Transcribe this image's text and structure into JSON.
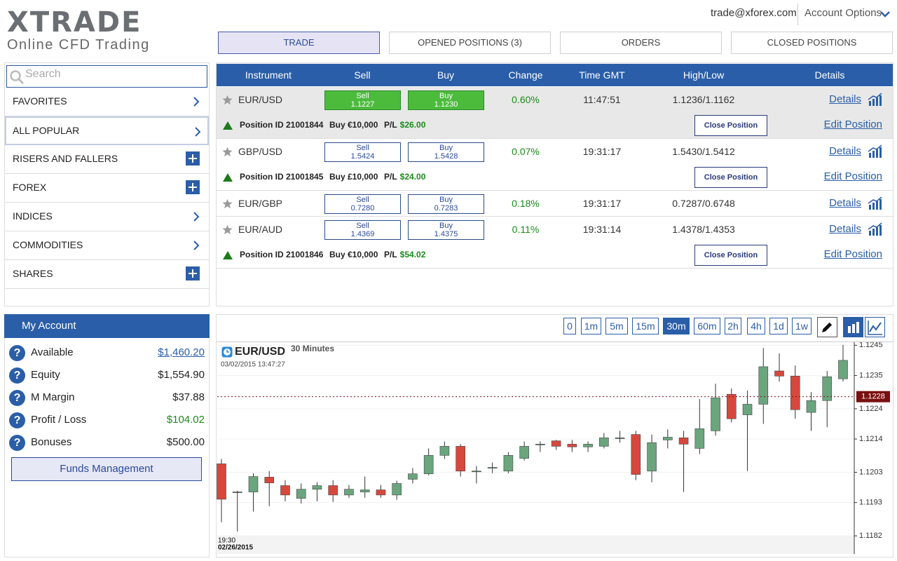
{
  "header": {
    "logo": "XTRADE",
    "tagline": "Online CFD Trading",
    "email": "trade@xforex.com",
    "account_options": "Account Options"
  },
  "tabs": {
    "items": [
      "TRADE",
      "OPENED POSITIONS (3)",
      "ORDERS",
      "CLOSED POSITIONS"
    ],
    "active_index": 0
  },
  "sidebar": {
    "search_placeholder": "Search",
    "menu": [
      {
        "label": "FAVORITES",
        "icon": "arrow"
      },
      {
        "label": "ALL POPULAR",
        "icon": "arrow",
        "highlighted": true
      },
      {
        "label": "RISERS AND FALLERS",
        "icon": "plus"
      },
      {
        "label": "FOREX",
        "icon": "plus"
      },
      {
        "label": "INDICES",
        "icon": "arrow"
      },
      {
        "label": "COMMODITIES",
        "icon": "arrow"
      },
      {
        "label": "SHARES",
        "icon": "plus"
      }
    ]
  },
  "table": {
    "headers": [
      "Instrument",
      "Sell",
      "Buy",
      "Change",
      "Time GMT",
      "High/Low",
      "Details"
    ],
    "rows": [
      {
        "instrument": "EUR/USD",
        "sell": {
          "label": "Sell",
          "price": "1.1227"
        },
        "buy": {
          "label": "Buy",
          "price": "1.1230"
        },
        "change": "0.60%",
        "time": "11:47:51",
        "high_low": "1.1236/1.1162",
        "details": "Details",
        "selected": true,
        "position": {
          "id": "Position ID 21001844",
          "amount": "Buy €10,000",
          "pl_label": "P/L",
          "pl": "$26.00",
          "close": "Close Position",
          "edit": "Edit Position"
        }
      },
      {
        "instrument": "GBP/USD",
        "sell": {
          "label": "Sell",
          "price": "1.5424"
        },
        "buy": {
          "label": "Buy",
          "price": "1.5428"
        },
        "change": "0.07%",
        "time": "19:31:17",
        "high_low": "1.5430/1.5412",
        "details": "Details",
        "selected": false,
        "position": {
          "id": "Position ID 21001845",
          "amount": "Buy £10,000",
          "pl_label": "P/L",
          "pl": "$24.00",
          "close": "Close Position",
          "edit": "Edit Position"
        }
      },
      {
        "instrument": "EUR/GBP",
        "sell": {
          "label": "Sell",
          "price": "0.7280"
        },
        "buy": {
          "label": "Buy",
          "price": "0.7283"
        },
        "change": "0.18%",
        "time": "19:31:17",
        "high_low": "0.7287/0.6748",
        "details": "Details",
        "selected": false
      },
      {
        "instrument": "EUR/AUD",
        "sell": {
          "label": "Sell",
          "price": "1.4369"
        },
        "buy": {
          "label": "Buy",
          "price": "1.4375"
        },
        "change": "0.11%",
        "time": "19:31:14",
        "high_low": "1.4378/1.4353",
        "details": "Details",
        "selected": false,
        "position": {
          "id": "Position ID 21001846",
          "amount": "Buy €10,000",
          "pl_label": "P/L",
          "pl": "$54.02",
          "close": "Close Position",
          "edit": "Edit Position"
        }
      }
    ]
  },
  "account": {
    "title": "My Account",
    "help_icon": "?",
    "items": [
      {
        "label": "Available",
        "value": "$1,460.20",
        "link": true
      },
      {
        "label": "Equity",
        "value": "$1,554.90"
      },
      {
        "label": "M Margin",
        "value": "$37.88"
      },
      {
        "label": "Profit / Loss",
        "value": "$104.02",
        "color": "#1a8a1a"
      },
      {
        "label": "Bonuses",
        "value": "$500.00"
      }
    ],
    "button": "Funds Management"
  },
  "chart_toolbar": {
    "timeframes": [
      "0",
      "1m",
      "5m",
      "15m",
      "30m",
      "60m",
      "2h",
      "4h",
      "1d",
      "1w"
    ],
    "active_index": 4
  },
  "chart_data": {
    "type": "candlestick",
    "symbol": "EUR/USD",
    "period": "30 Minutes",
    "timestamp": "03/02/2015 13:47:27",
    "categories": [
      "19:30",
      null,
      null,
      null,
      null,
      null,
      null,
      null,
      null,
      null,
      null,
      null,
      null,
      null,
      null,
      null,
      null,
      null,
      null,
      null,
      null,
      null,
      null,
      null,
      null,
      null,
      null,
      null,
      null,
      null,
      null,
      null,
      null,
      null,
      null,
      null,
      null,
      null,
      null,
      null
    ],
    "date_label": "02/26/2015",
    "open": [
      1.12058,
      1.11965,
      1.11965,
      1.12014,
      1.11986,
      1.11944,
      1.11974,
      1.11986,
      1.11955,
      1.11965,
      1.11972,
      1.11955,
      1.12007,
      1.12025,
      1.12086,
      1.12116,
      1.12034,
      1.12046,
      1.12034,
      1.12076,
      1.12123,
      1.12134,
      1.12123,
      1.12114,
      1.12116,
      1.12144,
      1.12155,
      1.12034,
      1.12137,
      1.12144,
      1.12109,
      1.12167,
      1.12288,
      1.1222,
      1.12255,
      1.12365,
      1.12348,
      1.12228,
      1.12267,
      1.12339
    ],
    "high": [
      1.12074,
      1.11969,
      1.12027,
      1.12034,
      1.12004,
      1.11993,
      1.11997,
      1.12004,
      1.11988,
      1.12016,
      1.11988,
      1.12002,
      1.12044,
      1.12109,
      1.12132,
      1.12123,
      1.12051,
      1.12062,
      1.12097,
      1.12132,
      1.12132,
      1.12137,
      1.12137,
      1.12132,
      1.1216,
      1.12167,
      1.12167,
      1.12155,
      1.12172,
      1.12167,
      1.12272,
      1.12323,
      1.12307,
      1.123,
      1.12441,
      1.12423,
      1.12383,
      1.12295,
      1.12365,
      1.12451
    ],
    "low": [
      1.11865,
      1.11834,
      1.119,
      1.11918,
      1.11934,
      1.11927,
      1.11934,
      1.11932,
      1.11946,
      1.11946,
      1.11946,
      1.11939,
      1.11993,
      1.1202,
      1.12074,
      1.12016,
      1.11993,
      1.12027,
      1.12027,
      1.12069,
      1.12097,
      1.12104,
      1.12097,
      1.12097,
      1.12109,
      1.12128,
      1.12004,
      1.11997,
      1.12109,
      1.11965,
      1.1209,
      1.12151,
      1.12195,
      1.12034,
      1.1219,
      1.1233,
      1.12207,
      1.12167,
      1.12179,
      1.1233
    ],
    "close": [
      1.11941,
      1.11965,
      1.12016,
      1.11995,
      1.11955,
      1.11974,
      1.11986,
      1.11955,
      1.11974,
      1.11972,
      1.11955,
      1.11993,
      1.12025,
      1.12086,
      1.12116,
      1.12034,
      1.12034,
      1.12046,
      1.12086,
      1.12116,
      1.12123,
      1.12116,
      1.12114,
      1.12123,
      1.12144,
      1.12144,
      1.12023,
      1.12128,
      1.12146,
      1.12123,
      1.12174,
      1.12276,
      1.12207,
      1.12255,
      1.12379,
      1.12348,
      1.12237,
      1.12267,
      1.12346,
      1.124
    ],
    "up_color": "#6aa57e",
    "down_color": "#d7483c",
    "wick_color": "#333333",
    "ylim": [
      1.1176,
      1.1246
    ],
    "yticks": [
      1.1245,
      1.1235,
      1.1224,
      1.1214,
      1.1203,
      1.1193,
      1.1182
    ],
    "grid": true,
    "last_price": 1.1228,
    "last_price_color": "#7a1010"
  }
}
